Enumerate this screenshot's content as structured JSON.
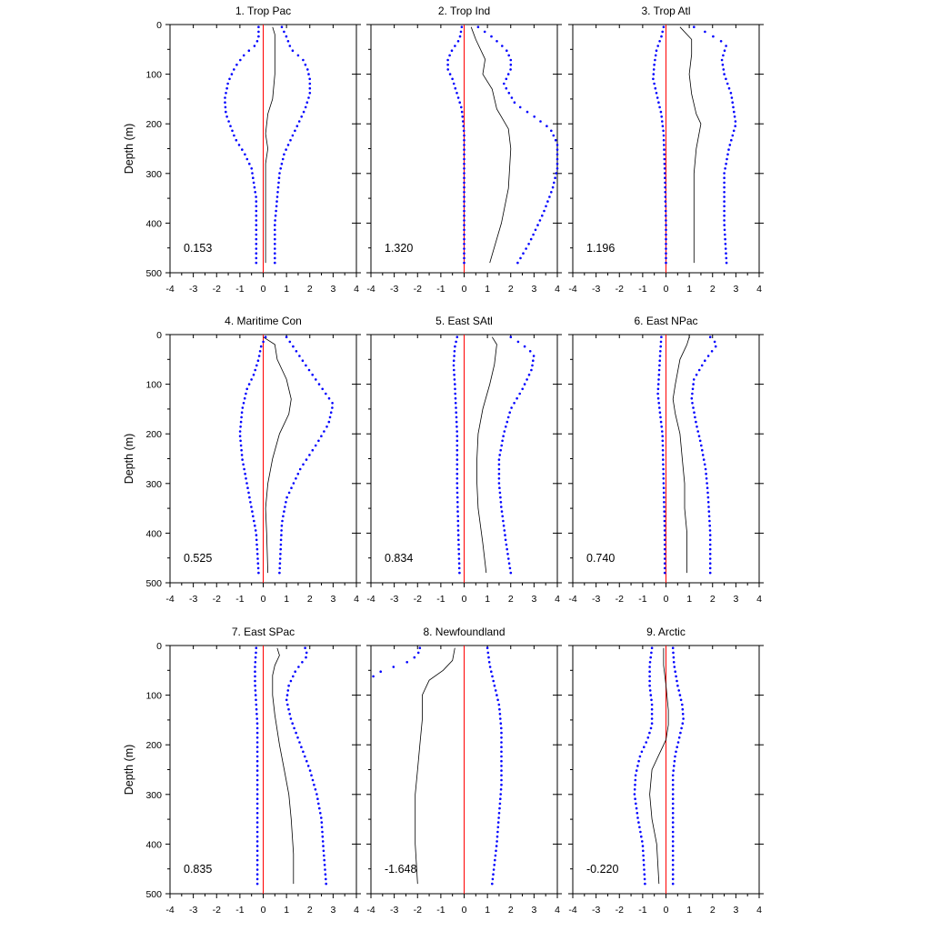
{
  "chart_data": {
    "type": "line",
    "xlim": [
      -4,
      4
    ],
    "ylim": [
      500,
      0
    ],
    "xticks": [
      -4,
      -3,
      -2,
      -1,
      0,
      1,
      2,
      3,
      4
    ],
    "yticks": [
      0,
      100,
      200,
      300,
      400,
      500
    ],
    "ylabel": "Depth (m)",
    "xlabel": "",
    "grid": false,
    "colors": {
      "mean": "#000000",
      "bounds": "#0000ff",
      "zero_line": "#ff0000"
    },
    "panels": [
      {
        "title": "1. Trop Pac",
        "value": "0.153",
        "mean": [
          [
            0.4,
            5
          ],
          [
            0.5,
            20
          ],
          [
            0.5,
            50
          ],
          [
            0.5,
            100
          ],
          [
            0.4,
            150
          ],
          [
            0.2,
            180
          ],
          [
            0.1,
            220
          ],
          [
            0.2,
            250
          ],
          [
            0.1,
            280
          ],
          [
            0.1,
            330
          ],
          [
            0.1,
            400
          ],
          [
            0.1,
            480
          ]
        ],
        "lower": [
          [
            -0.2,
            5
          ],
          [
            -0.2,
            25
          ],
          [
            -0.3,
            40
          ],
          [
            -0.8,
            60
          ],
          [
            -1.2,
            85
          ],
          [
            -1.5,
            115
          ],
          [
            -1.65,
            150
          ],
          [
            -1.6,
            180
          ],
          [
            -1.4,
            205
          ],
          [
            -1.2,
            230
          ],
          [
            -0.8,
            260
          ],
          [
            -0.5,
            290
          ],
          [
            -0.4,
            320
          ],
          [
            -0.3,
            350
          ],
          [
            -0.3,
            380
          ],
          [
            -0.3,
            420
          ],
          [
            -0.3,
            480
          ]
        ],
        "upper": [
          [
            0.8,
            5
          ],
          [
            1.0,
            25
          ],
          [
            1.2,
            50
          ],
          [
            1.7,
            70
          ],
          [
            1.9,
            90
          ],
          [
            2.0,
            110
          ],
          [
            2.0,
            140
          ],
          [
            1.8,
            170
          ],
          [
            1.5,
            200
          ],
          [
            1.2,
            230
          ],
          [
            0.9,
            260
          ],
          [
            0.7,
            300
          ],
          [
            0.6,
            350
          ],
          [
            0.5,
            400
          ],
          [
            0.5,
            480
          ]
        ]
      },
      {
        "title": "2. Trop Ind",
        "value": "1.320",
        "mean": [
          [
            0.3,
            5
          ],
          [
            0.5,
            30
          ],
          [
            0.9,
            70
          ],
          [
            0.8,
            100
          ],
          [
            1.2,
            130
          ],
          [
            1.4,
            170
          ],
          [
            1.9,
            210
          ],
          [
            2.0,
            250
          ],
          [
            1.9,
            330
          ],
          [
            1.6,
            400
          ],
          [
            1.1,
            480
          ]
        ],
        "lower": [
          [
            -0.1,
            5
          ],
          [
            -0.2,
            30
          ],
          [
            -0.5,
            50
          ],
          [
            -0.7,
            70
          ],
          [
            -0.7,
            90
          ],
          [
            -0.5,
            110
          ],
          [
            -0.3,
            140
          ],
          [
            -0.1,
            170
          ],
          [
            0.0,
            220
          ],
          [
            0.0,
            300
          ],
          [
            0.0,
            400
          ],
          [
            0.0,
            480
          ]
        ],
        "upper": [
          [
            0.6,
            5
          ],
          [
            1.2,
            25
          ],
          [
            1.8,
            50
          ],
          [
            2.0,
            70
          ],
          [
            2.0,
            90
          ],
          [
            1.7,
            120
          ],
          [
            2.2,
            160
          ],
          [
            3.0,
            185
          ],
          [
            3.7,
            210
          ],
          [
            4.0,
            240
          ],
          [
            4.0,
            290
          ],
          [
            3.8,
            330
          ],
          [
            3.4,
            380
          ],
          [
            2.8,
            440
          ],
          [
            2.3,
            480
          ]
        ]
      },
      {
        "title": "3. Trop Atl",
        "value": "1.196",
        "mean": [
          [
            0.6,
            5
          ],
          [
            1.1,
            30
          ],
          [
            1.1,
            60
          ],
          [
            1.0,
            100
          ],
          [
            1.1,
            140
          ],
          [
            1.3,
            180
          ],
          [
            1.5,
            200
          ],
          [
            1.3,
            250
          ],
          [
            1.2,
            300
          ],
          [
            1.2,
            400
          ],
          [
            1.2,
            480
          ]
        ],
        "lower": [
          [
            -0.1,
            5
          ],
          [
            -0.2,
            25
          ],
          [
            -0.4,
            50
          ],
          [
            -0.5,
            80
          ],
          [
            -0.55,
            110
          ],
          [
            -0.4,
            140
          ],
          [
            -0.2,
            180
          ],
          [
            -0.1,
            220
          ],
          [
            -0.05,
            300
          ],
          [
            0.0,
            400
          ],
          [
            0.0,
            480
          ]
        ],
        "upper": [
          [
            1.2,
            5
          ],
          [
            1.7,
            15
          ],
          [
            2.6,
            40
          ],
          [
            2.4,
            70
          ],
          [
            2.5,
            100
          ],
          [
            2.8,
            140
          ],
          [
            3.0,
            200
          ],
          [
            2.7,
            250
          ],
          [
            2.5,
            300
          ],
          [
            2.5,
            400
          ],
          [
            2.6,
            480
          ]
        ]
      },
      {
        "title": "4. Maritime Con",
        "value": "0.525",
        "mean": [
          [
            0.0,
            5
          ],
          [
            0.5,
            20
          ],
          [
            0.6,
            50
          ],
          [
            1.0,
            90
          ],
          [
            1.2,
            130
          ],
          [
            1.1,
            160
          ],
          [
            0.7,
            200
          ],
          [
            0.4,
            250
          ],
          [
            0.2,
            300
          ],
          [
            0.1,
            350
          ],
          [
            0.15,
            400
          ],
          [
            0.2,
            480
          ]
        ],
        "lower": [
          [
            0.1,
            5
          ],
          [
            -0.1,
            25
          ],
          [
            -0.2,
            50
          ],
          [
            -0.4,
            80
          ],
          [
            -0.7,
            110
          ],
          [
            -0.9,
            150
          ],
          [
            -1.0,
            200
          ],
          [
            -0.9,
            250
          ],
          [
            -0.7,
            300
          ],
          [
            -0.5,
            350
          ],
          [
            -0.3,
            400
          ],
          [
            -0.2,
            480
          ]
        ],
        "upper": [
          [
            1.0,
            5
          ],
          [
            1.3,
            25
          ],
          [
            1.8,
            60
          ],
          [
            2.4,
            100
          ],
          [
            3.0,
            140
          ],
          [
            2.8,
            180
          ],
          [
            2.3,
            220
          ],
          [
            1.6,
            270
          ],
          [
            1.0,
            330
          ],
          [
            0.8,
            380
          ],
          [
            0.7,
            480
          ]
        ]
      },
      {
        "title": "5. East SAtl",
        "value": "0.834",
        "mean": [
          [
            1.2,
            5
          ],
          [
            1.4,
            20
          ],
          [
            1.3,
            60
          ],
          [
            1.1,
            100
          ],
          [
            0.8,
            150
          ],
          [
            0.6,
            200
          ],
          [
            0.55,
            250
          ],
          [
            0.55,
            300
          ],
          [
            0.6,
            350
          ],
          [
            0.8,
            420
          ],
          [
            0.95,
            480
          ]
        ],
        "lower": [
          [
            -0.3,
            5
          ],
          [
            -0.4,
            25
          ],
          [
            -0.45,
            60
          ],
          [
            -0.4,
            100
          ],
          [
            -0.35,
            150
          ],
          [
            -0.3,
            200
          ],
          [
            -0.3,
            300
          ],
          [
            -0.25,
            400
          ],
          [
            -0.2,
            480
          ]
        ],
        "upper": [
          [
            2.0,
            5
          ],
          [
            2.5,
            20
          ],
          [
            3.0,
            40
          ],
          [
            2.9,
            70
          ],
          [
            2.5,
            110
          ],
          [
            2.0,
            150
          ],
          [
            1.7,
            200
          ],
          [
            1.5,
            250
          ],
          [
            1.5,
            300
          ],
          [
            1.6,
            350
          ],
          [
            1.8,
            420
          ],
          [
            2.0,
            480
          ]
        ]
      },
      {
        "title": "6. East NPac",
        "value": "0.740",
        "mean": [
          [
            1.0,
            5
          ],
          [
            0.9,
            20
          ],
          [
            0.6,
            50
          ],
          [
            0.4,
            100
          ],
          [
            0.3,
            130
          ],
          [
            0.4,
            160
          ],
          [
            0.6,
            200
          ],
          [
            0.7,
            250
          ],
          [
            0.8,
            300
          ],
          [
            0.8,
            350
          ],
          [
            0.9,
            400
          ],
          [
            0.9,
            480
          ]
        ],
        "lower": [
          [
            -0.2,
            5
          ],
          [
            -0.25,
            40
          ],
          [
            -0.3,
            80
          ],
          [
            -0.35,
            120
          ],
          [
            -0.25,
            160
          ],
          [
            -0.15,
            200
          ],
          [
            -0.1,
            300
          ],
          [
            -0.05,
            400
          ],
          [
            -0.05,
            480
          ]
        ],
        "upper": [
          [
            1.9,
            5
          ],
          [
            2.2,
            20
          ],
          [
            1.7,
            50
          ],
          [
            1.2,
            90
          ],
          [
            1.1,
            130
          ],
          [
            1.3,
            180
          ],
          [
            1.5,
            220
          ],
          [
            1.7,
            270
          ],
          [
            1.8,
            320
          ],
          [
            1.9,
            400
          ],
          [
            1.9,
            480
          ]
        ]
      },
      {
        "title": "7. East SPac",
        "value": "0.835",
        "mean": [
          [
            0.6,
            5
          ],
          [
            0.7,
            20
          ],
          [
            0.5,
            40
          ],
          [
            0.4,
            60
          ],
          [
            0.4,
            100
          ],
          [
            0.5,
            140
          ],
          [
            0.7,
            200
          ],
          [
            0.9,
            250
          ],
          [
            1.1,
            300
          ],
          [
            1.2,
            350
          ],
          [
            1.3,
            420
          ],
          [
            1.3,
            480
          ]
        ],
        "lower": [
          [
            -0.3,
            5
          ],
          [
            -0.35,
            40
          ],
          [
            -0.35,
            80
          ],
          [
            -0.3,
            120
          ],
          [
            -0.25,
            160
          ],
          [
            -0.25,
            200
          ],
          [
            -0.25,
            300
          ],
          [
            -0.25,
            400
          ],
          [
            -0.25,
            480
          ]
        ],
        "upper": [
          [
            1.8,
            5
          ],
          [
            1.9,
            20
          ],
          [
            1.4,
            50
          ],
          [
            1.1,
            80
          ],
          [
            1.0,
            110
          ],
          [
            1.2,
            150
          ],
          [
            1.6,
            200
          ],
          [
            2.0,
            250
          ],
          [
            2.3,
            300
          ],
          [
            2.5,
            350
          ],
          [
            2.6,
            420
          ],
          [
            2.7,
            480
          ]
        ]
      },
      {
        "title": "8. Newfoundland",
        "value": "-1.648",
        "mean": [
          [
            -0.4,
            5
          ],
          [
            -0.5,
            30
          ],
          [
            -0.9,
            50
          ],
          [
            -1.5,
            70
          ],
          [
            -1.8,
            100
          ],
          [
            -1.8,
            150
          ],
          [
            -1.9,
            200
          ],
          [
            -2.0,
            250
          ],
          [
            -2.1,
            300
          ],
          [
            -2.1,
            400
          ],
          [
            -2.0,
            480
          ]
        ],
        "lower": [
          [
            -1.9,
            5
          ],
          [
            -2.0,
            20
          ],
          [
            -2.5,
            35
          ],
          [
            -3.5,
            50
          ],
          [
            -4.0,
            65
          ]
        ],
        "upper": [
          [
            1.0,
            5
          ],
          [
            1.1,
            40
          ],
          [
            1.3,
            80
          ],
          [
            1.5,
            120
          ],
          [
            1.6,
            170
          ],
          [
            1.6,
            220
          ],
          [
            1.6,
            280
          ],
          [
            1.5,
            340
          ],
          [
            1.4,
            400
          ],
          [
            1.2,
            480
          ]
        ]
      },
      {
        "title": "9. Arctic",
        "value": "-0.220",
        "mean": [
          [
            -0.1,
            5
          ],
          [
            -0.1,
            40
          ],
          [
            0.0,
            80
          ],
          [
            0.1,
            130
          ],
          [
            0.1,
            160
          ],
          [
            0.0,
            190
          ],
          [
            -0.3,
            220
          ],
          [
            -0.6,
            250
          ],
          [
            -0.7,
            300
          ],
          [
            -0.6,
            350
          ],
          [
            -0.4,
            400
          ],
          [
            -0.3,
            480
          ]
        ],
        "lower": [
          [
            -0.6,
            5
          ],
          [
            -0.7,
            40
          ],
          [
            -0.7,
            80
          ],
          [
            -0.6,
            120
          ],
          [
            -0.6,
            160
          ],
          [
            -0.8,
            190
          ],
          [
            -1.1,
            220
          ],
          [
            -1.3,
            260
          ],
          [
            -1.35,
            300
          ],
          [
            -1.2,
            350
          ],
          [
            -1.0,
            400
          ],
          [
            -0.9,
            480
          ]
        ],
        "upper": [
          [
            0.3,
            5
          ],
          [
            0.35,
            40
          ],
          [
            0.5,
            80
          ],
          [
            0.7,
            120
          ],
          [
            0.75,
            150
          ],
          [
            0.6,
            180
          ],
          [
            0.4,
            220
          ],
          [
            0.3,
            260
          ],
          [
            0.3,
            300
          ],
          [
            0.3,
            400
          ],
          [
            0.3,
            480
          ]
        ]
      }
    ]
  }
}
